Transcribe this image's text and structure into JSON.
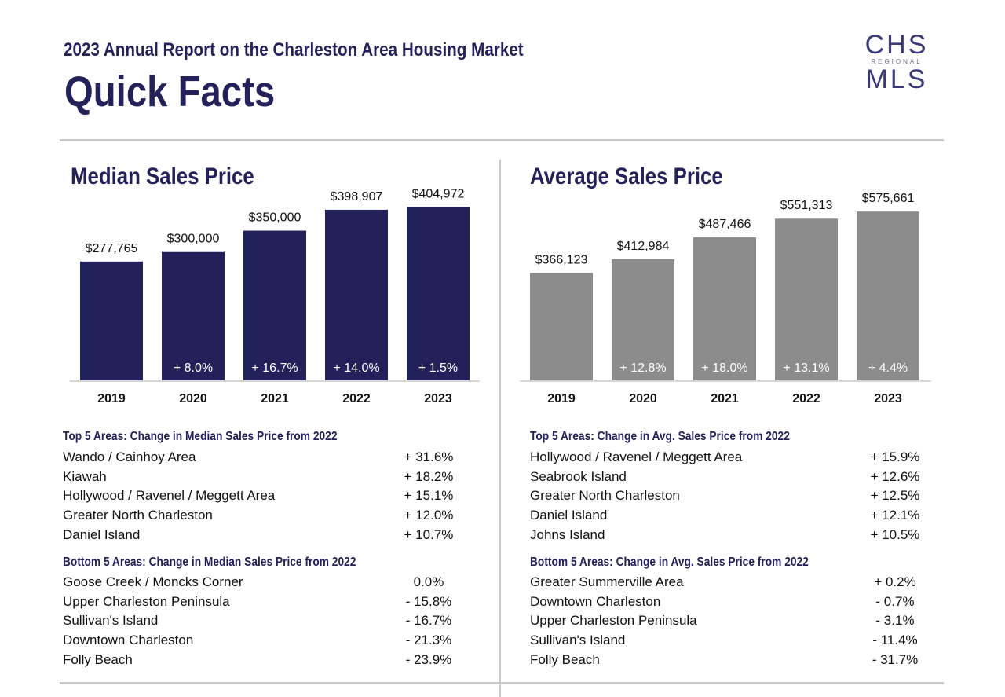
{
  "header": {
    "subtitle": "2023 Annual Report on the Charleston Area Housing Market",
    "title": "Quick Facts",
    "logo": {
      "line1": "CHS",
      "line2": "REGIONAL",
      "line3": "MLS"
    }
  },
  "chart_data": [
    {
      "type": "bar",
      "title": "Median Sales Price",
      "categories": [
        "2019",
        "2020",
        "2021",
        "2022",
        "2023"
      ],
      "values": [
        277765,
        300000,
        350000,
        398907,
        404972
      ],
      "value_labels": [
        "$277,765",
        "$300,000",
        "$350,000",
        "$398,907",
        "$404,972"
      ],
      "change_labels": [
        "",
        "+ 8.0%",
        "+ 16.7%",
        "+ 14.0%",
        "+ 1.5%"
      ],
      "bar_color": "#23215a",
      "ylim": [
        0,
        430000
      ]
    },
    {
      "type": "bar",
      "title": "Average Sales Price",
      "categories": [
        "2019",
        "2020",
        "2021",
        "2022",
        "2023"
      ],
      "values": [
        366123,
        412984,
        487466,
        551313,
        575661
      ],
      "value_labels": [
        "$366,123",
        "$412,984",
        "$487,466",
        "$551,313",
        "$575,661"
      ],
      "change_labels": [
        "",
        "+ 12.8%",
        "+ 18.0%",
        "+ 13.1%",
        "+ 4.4%"
      ],
      "bar_color": "#8c8c8c",
      "ylim": [
        0,
        627000
      ]
    }
  ],
  "median_top": {
    "heading": "Top 5 Areas: Change in Median Sales Price from 2022",
    "rows": [
      {
        "area": "Wando / Cainhoy Area",
        "change": "+ 31.6%"
      },
      {
        "area": "Kiawah",
        "change": "+ 18.2%"
      },
      {
        "area": "Hollywood / Ravenel / Meggett Area",
        "change": "+ 15.1%"
      },
      {
        "area": "Greater North Charleston",
        "change": "+ 12.0%"
      },
      {
        "area": "Daniel Island",
        "change": "+ 10.7%"
      }
    ]
  },
  "median_bottom": {
    "heading": "Bottom 5 Areas: Change in Median Sales Price from 2022",
    "rows": [
      {
        "area": "Goose Creek / Moncks Corner",
        "change": "0.0%"
      },
      {
        "area": "Upper Charleston Peninsula",
        "change": "- 15.8%"
      },
      {
        "area": "Sullivan's Island",
        "change": "- 16.7%"
      },
      {
        "area": "Downtown Charleston",
        "change": "- 21.3%"
      },
      {
        "area": "Folly Beach",
        "change": "- 23.9%"
      }
    ]
  },
  "avg_top": {
    "heading": "Top 5 Areas: Change in Avg. Sales Price from 2022",
    "rows": [
      {
        "area": "Hollywood / Ravenel / Meggett Area",
        "change": "+ 15.9%"
      },
      {
        "area": "Seabrook Island",
        "change": "+ 12.6%"
      },
      {
        "area": "Greater North Charleston",
        "change": "+ 12.5%"
      },
      {
        "area": "Daniel Island",
        "change": "+ 12.1%"
      },
      {
        "area": "Johns Island",
        "change": "+ 10.5%"
      }
    ]
  },
  "avg_bottom": {
    "heading": "Bottom 5 Areas: Change in Avg. Sales Price from 2022",
    "rows": [
      {
        "area": "Greater Summerville Area",
        "change": "+ 0.2%"
      },
      {
        "area": "Downtown Charleston",
        "change": "- 0.7%"
      },
      {
        "area": "Upper Charleston Peninsula",
        "change": "- 3.1%"
      },
      {
        "area": "Sullivan's Island",
        "change": "- 11.4%"
      },
      {
        "area": "Folly Beach",
        "change": "- 31.7%"
      }
    ]
  }
}
